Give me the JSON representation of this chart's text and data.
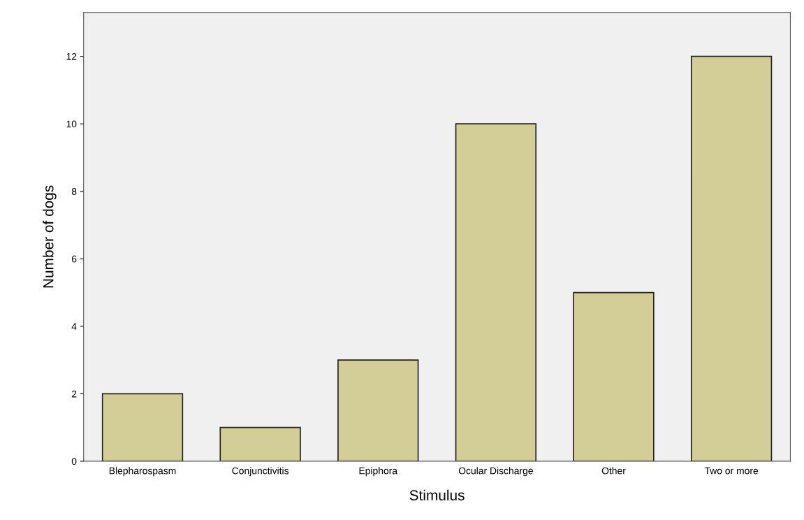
{
  "chart_data": {
    "type": "bar",
    "xlabel": "Stimulus",
    "ylabel": "Number of dogs",
    "categories": [
      "Blepharospasm",
      "Conjunctivitis",
      "Epiphora",
      "Ocular Discharge",
      "Other",
      "Two or more"
    ],
    "values": [
      2,
      1,
      3,
      10,
      5,
      12
    ],
    "color": "#d3ce97",
    "ylim": [
      0,
      13.3
    ],
    "yticks": [
      0,
      2,
      4,
      6,
      8,
      10,
      12
    ],
    "grid": false
  }
}
